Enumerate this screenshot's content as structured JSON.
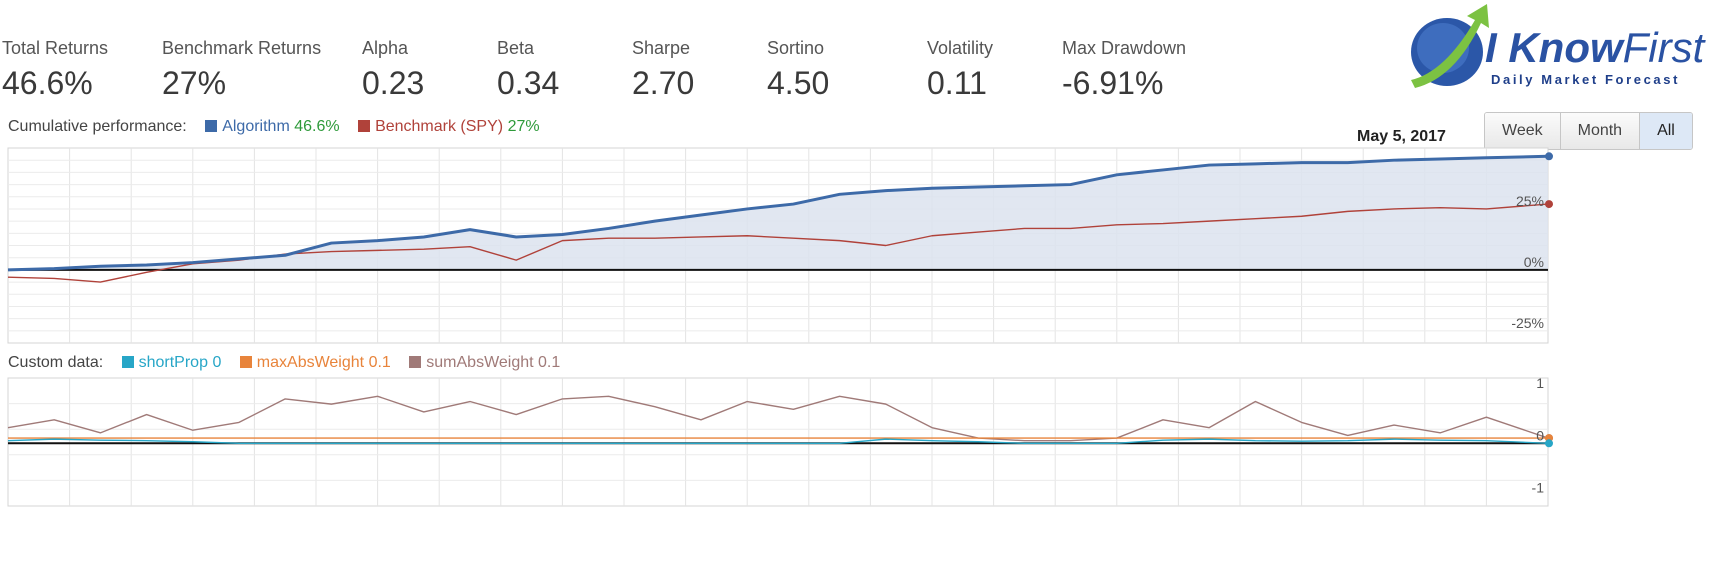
{
  "metrics": [
    {
      "label": "Total Returns",
      "value": "46.6%"
    },
    {
      "label": "Benchmark Returns",
      "value": "27%"
    },
    {
      "label": "Alpha",
      "value": "0.23"
    },
    {
      "label": "Beta",
      "value": "0.34"
    },
    {
      "label": "Sharpe",
      "value": "2.70"
    },
    {
      "label": "Sortino",
      "value": "4.50"
    },
    {
      "label": "Volatility",
      "value": "0.11"
    },
    {
      "label": "Max Drawdown",
      "value": "-6.91%"
    }
  ],
  "logo": {
    "word1": "I Know",
    "word2": "First",
    "tagline": "Daily Market Forecast",
    "icon": "rising-arrow-globe-logo"
  },
  "date": "May 5, 2017",
  "range_buttons": [
    {
      "label": "Week",
      "active": false
    },
    {
      "label": "Month",
      "active": false
    },
    {
      "label": "All",
      "active": true
    }
  ],
  "colors": {
    "algorithm": "#3d6aa8",
    "benchmark": "#b0423a",
    "shortProp": "#27a6c7",
    "maxAbsWeight": "#e8843b",
    "sumAbsWeight": "#a07a78",
    "area_fill": "#dce3ee",
    "positive": "#2e9a3a"
  },
  "chart_data": [
    {
      "type": "line",
      "legend_lead": "Cumulative performance:",
      "ylim": [
        -30,
        50
      ],
      "y_ticks": [
        {
          "value": 25,
          "label": "25%"
        },
        {
          "value": 0,
          "label": "0%"
        },
        {
          "value": -25,
          "label": "-25%"
        }
      ],
      "x": [
        0,
        0.03,
        0.06,
        0.09,
        0.12,
        0.15,
        0.18,
        0.21,
        0.24,
        0.27,
        0.3,
        0.33,
        0.36,
        0.39,
        0.42,
        0.45,
        0.48,
        0.51,
        0.54,
        0.57,
        0.6,
        0.63,
        0.66,
        0.69,
        0.72,
        0.75,
        0.78,
        0.81,
        0.84,
        0.87,
        0.9,
        0.93,
        0.96,
        1.0
      ],
      "series": [
        {
          "name": "Algorithm",
          "legend_value": "46.6%",
          "color_key": "algorithm",
          "values": [
            0,
            0.5,
            1.5,
            2,
            3,
            4.5,
            6,
            11,
            12,
            13.5,
            16.5,
            13.5,
            14.5,
            17,
            20,
            22.5,
            25,
            27,
            31,
            32.5,
            33.5,
            34,
            34.5,
            35,
            39,
            41,
            43,
            43.5,
            44,
            44,
            45,
            45.5,
            46,
            46.6
          ]
        },
        {
          "name": "Benchmark (SPY)",
          "legend_value": "27%",
          "color_key": "benchmark",
          "values": [
            -3,
            -3.5,
            -5,
            -1,
            2.5,
            4,
            6.5,
            7.5,
            8,
            8.5,
            9.5,
            4,
            12,
            13,
            13,
            13.5,
            14,
            13,
            12,
            10,
            14,
            15.5,
            17,
            17,
            18.5,
            19,
            20,
            21,
            22,
            24,
            25,
            25.5,
            25,
            27
          ]
        }
      ]
    },
    {
      "type": "line",
      "legend_lead": "Custom data:",
      "ylim": [
        -1.2,
        1.25
      ],
      "y_ticks": [
        {
          "value": 1,
          "label": "1"
        },
        {
          "value": 0,
          "label": "0"
        },
        {
          "value": -1,
          "label": "-1"
        }
      ],
      "x": [
        0,
        0.03,
        0.06,
        0.09,
        0.12,
        0.15,
        0.18,
        0.21,
        0.24,
        0.27,
        0.3,
        0.33,
        0.36,
        0.39,
        0.42,
        0.45,
        0.48,
        0.51,
        0.54,
        0.57,
        0.6,
        0.63,
        0.66,
        0.69,
        0.72,
        0.75,
        0.78,
        0.81,
        0.84,
        0.87,
        0.9,
        0.93,
        0.96,
        1.0
      ],
      "series": [
        {
          "name": "shortProp",
          "legend_value": "0",
          "color_key": "shortProp",
          "values": [
            0.05,
            0.08,
            0.06,
            0.05,
            0.03,
            0,
            0,
            0,
            0,
            0,
            0,
            0,
            0,
            0,
            0,
            0,
            0,
            0,
            0,
            0.08,
            0.05,
            0.03,
            0,
            0,
            0,
            0.06,
            0.08,
            0.05,
            0.04,
            0.05,
            0.08,
            0.06,
            0.05,
            0
          ]
        },
        {
          "name": "maxAbsWeight",
          "legend_value": "0.1",
          "color_key": "maxAbsWeight",
          "values": [
            0.1,
            0.1,
            0.1,
            0.1,
            0.1,
            0.1,
            0.1,
            0.1,
            0.1,
            0.1,
            0.1,
            0.1,
            0.1,
            0.1,
            0.1,
            0.1,
            0.1,
            0.1,
            0.1,
            0.1,
            0.1,
            0.1,
            0.1,
            0.1,
            0.1,
            0.1,
            0.1,
            0.1,
            0.1,
            0.1,
            0.1,
            0.1,
            0.1,
            0.1
          ]
        },
        {
          "name": "sumAbsWeight",
          "legend_value": "0.1",
          "color_key": "sumAbsWeight",
          "values": [
            0.3,
            0.45,
            0.2,
            0.55,
            0.25,
            0.4,
            0.85,
            0.75,
            0.9,
            0.6,
            0.8,
            0.55,
            0.85,
            0.9,
            0.7,
            0.45,
            0.8,
            0.65,
            0.9,
            0.75,
            0.3,
            0.1,
            0.05,
            0.05,
            0.1,
            0.45,
            0.3,
            0.8,
            0.4,
            0.15,
            0.35,
            0.2,
            0.5,
            0.1
          ]
        }
      ]
    }
  ]
}
